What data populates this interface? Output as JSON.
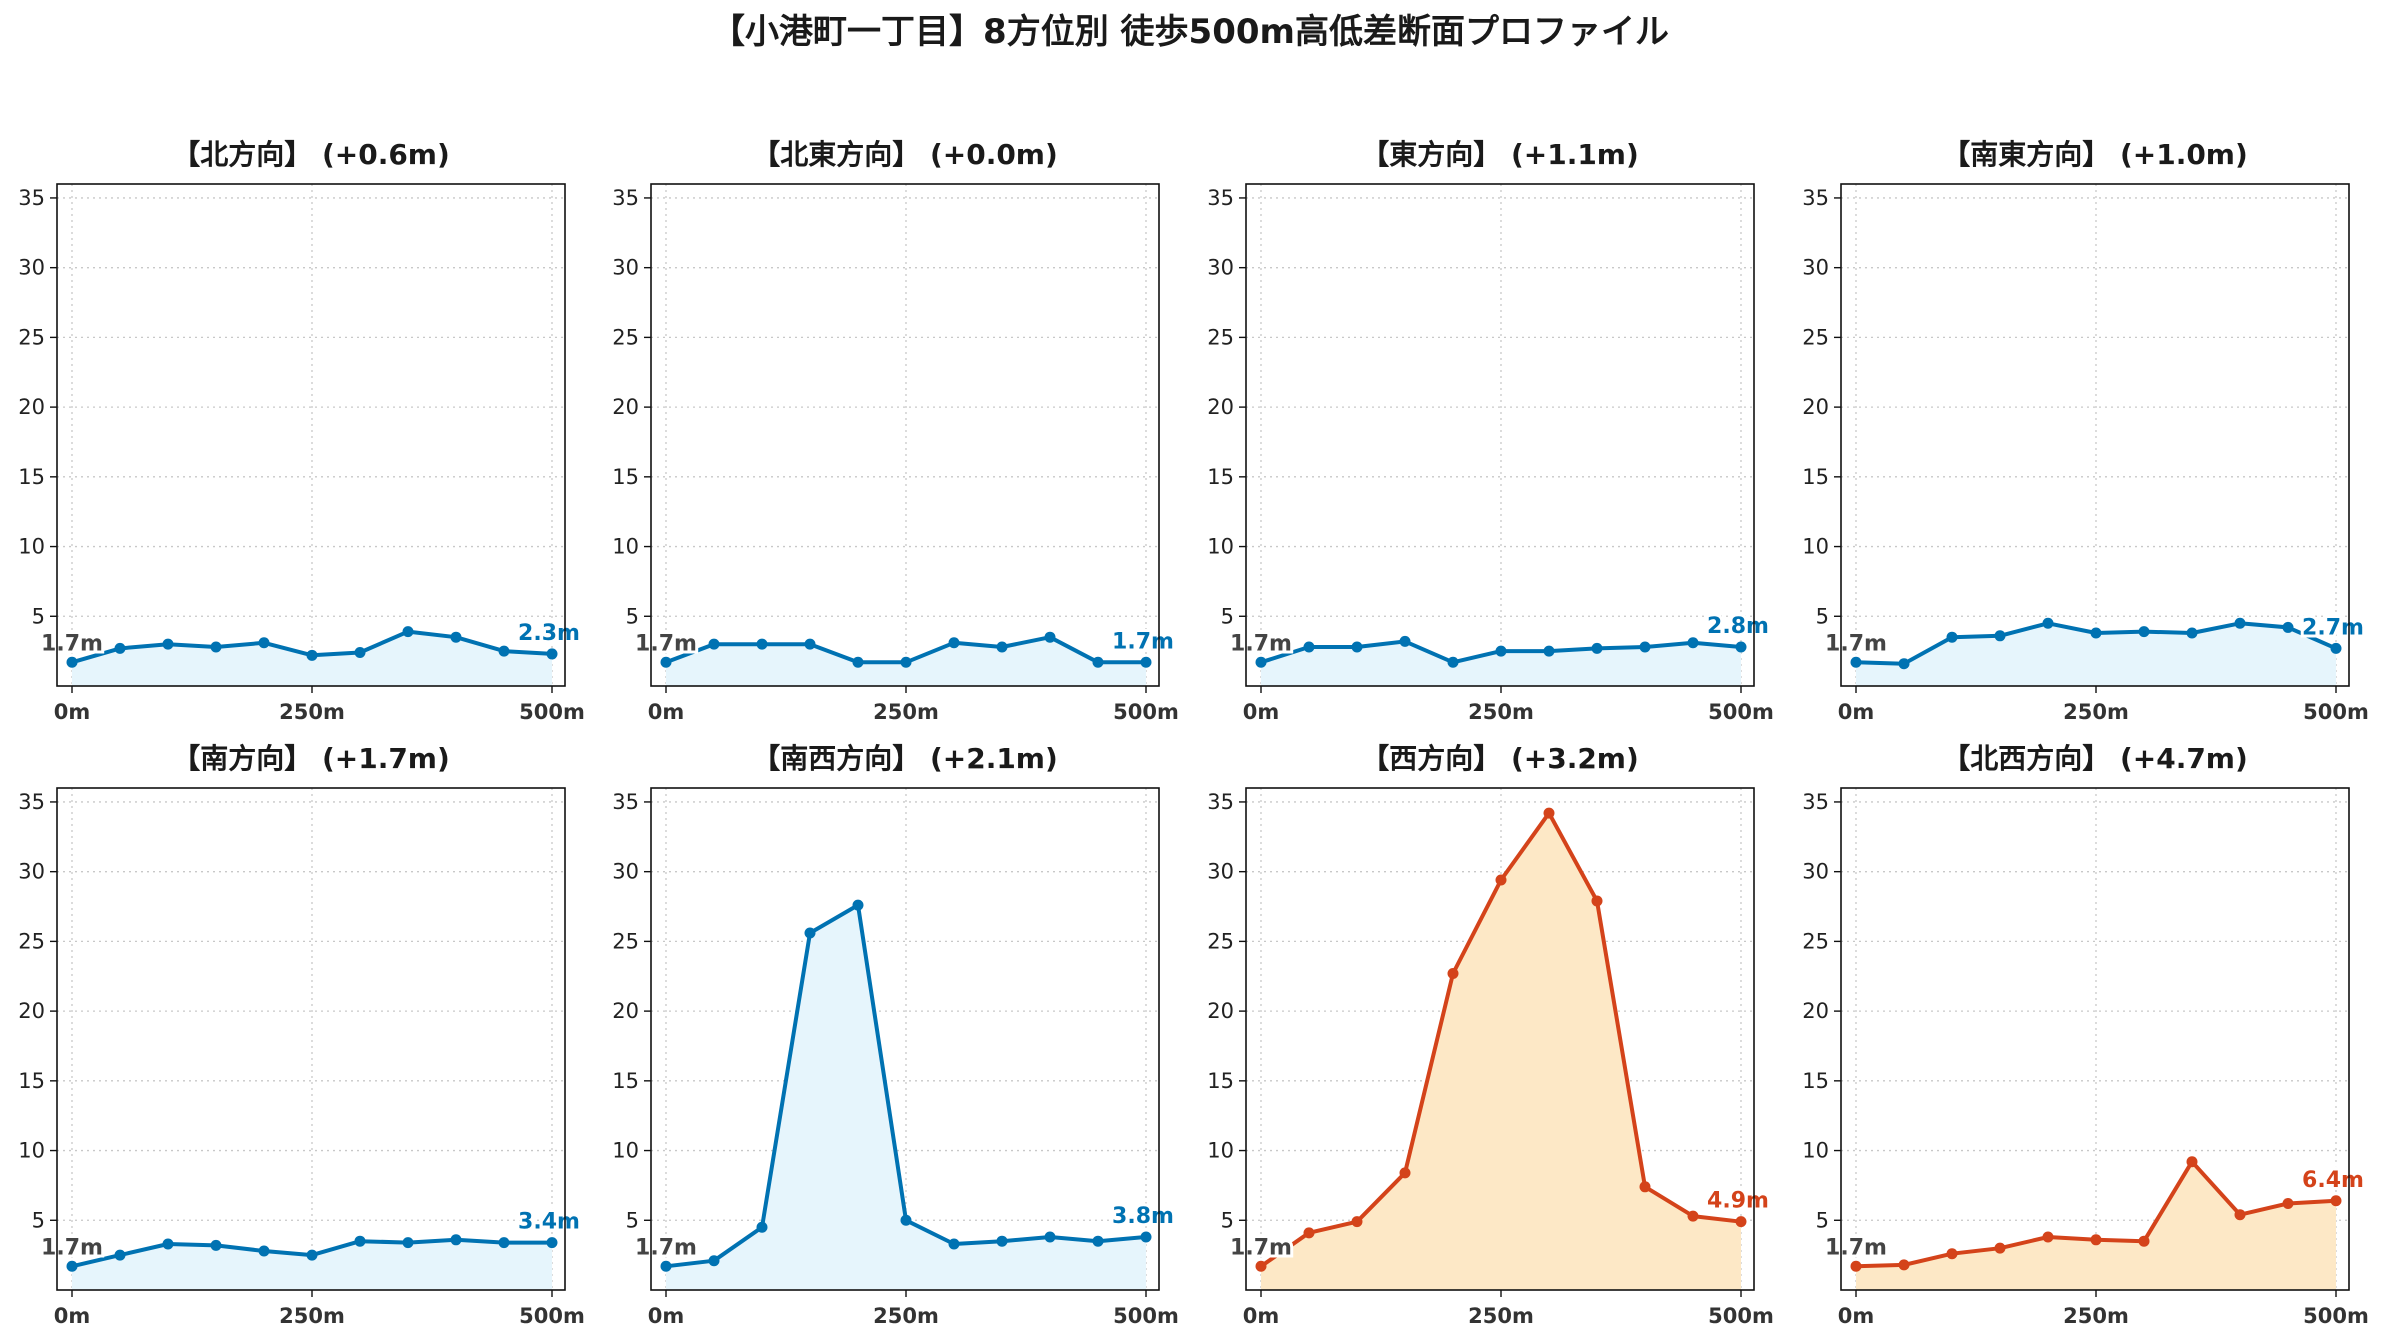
{
  "title": "【小港町一丁目】8方位別 徒歩500m高低差断面プロファイル",
  "colors": {
    "blue_line": "#0072b2",
    "blue_fill": "#e6f5fc",
    "red_line": "#d4431a",
    "orange_fill": "#fde8c6"
  },
  "chart_data": [
    {
      "type": "area",
      "title": "【北方向】 (+0.6m)",
      "x": [
        0,
        50,
        100,
        150,
        200,
        250,
        300,
        350,
        400,
        450,
        500
      ],
      "y": [
        1.7,
        2.7,
        3.0,
        2.8,
        3.1,
        2.2,
        2.4,
        3.9,
        3.5,
        2.5,
        2.3
      ],
      "start_label": "1.7m",
      "end_label": "2.3m",
      "color": "blue",
      "xticklabels": [
        "0m",
        "250m",
        "500m"
      ],
      "yticks": [
        5,
        10,
        15,
        20,
        25,
        30,
        35
      ],
      "ylim": [
        0,
        36
      ],
      "xlim": [
        0,
        500
      ],
      "grid": true
    },
    {
      "type": "area",
      "title": "【北東方向】 (+0.0m)",
      "x": [
        0,
        50,
        100,
        150,
        200,
        250,
        300,
        350,
        400,
        450,
        500
      ],
      "y": [
        1.7,
        3.0,
        3.0,
        3.0,
        1.7,
        1.7,
        3.1,
        2.8,
        3.5,
        1.7,
        1.7
      ],
      "start_label": "1.7m",
      "end_label": "1.7m",
      "color": "blue",
      "xticklabels": [
        "0m",
        "250m",
        "500m"
      ],
      "yticks": [
        5,
        10,
        15,
        20,
        25,
        30,
        35
      ],
      "ylim": [
        0,
        36
      ],
      "xlim": [
        0,
        500
      ],
      "grid": true
    },
    {
      "type": "area",
      "title": "【東方向】 (+1.1m)",
      "x": [
        0,
        50,
        100,
        150,
        200,
        250,
        300,
        350,
        400,
        450,
        500
      ],
      "y": [
        1.7,
        2.8,
        2.8,
        3.2,
        1.7,
        2.5,
        2.5,
        2.7,
        2.8,
        3.1,
        2.8
      ],
      "start_label": "1.7m",
      "end_label": "2.8m",
      "color": "blue",
      "xticklabels": [
        "0m",
        "250m",
        "500m"
      ],
      "yticks": [
        5,
        10,
        15,
        20,
        25,
        30,
        35
      ],
      "ylim": [
        0,
        36
      ],
      "xlim": [
        0,
        500
      ],
      "grid": true
    },
    {
      "type": "area",
      "title": "【南東方向】 (+1.0m)",
      "x": [
        0,
        50,
        100,
        150,
        200,
        250,
        300,
        350,
        400,
        450,
        500
      ],
      "y": [
        1.7,
        1.6,
        3.5,
        3.6,
        4.5,
        3.8,
        3.9,
        3.8,
        4.5,
        4.2,
        2.7
      ],
      "start_label": "1.7m",
      "end_label": "2.7m",
      "color": "blue",
      "xticklabels": [
        "0m",
        "250m",
        "500m"
      ],
      "yticks": [
        5,
        10,
        15,
        20,
        25,
        30,
        35
      ],
      "ylim": [
        0,
        36
      ],
      "xlim": [
        0,
        500
      ],
      "grid": true
    },
    {
      "type": "area",
      "title": "【南方向】 (+1.7m)",
      "x": [
        0,
        50,
        100,
        150,
        200,
        250,
        300,
        350,
        400,
        450,
        500
      ],
      "y": [
        1.7,
        2.5,
        3.3,
        3.2,
        2.8,
        2.5,
        3.5,
        3.4,
        3.6,
        3.4,
        3.4
      ],
      "start_label": "1.7m",
      "end_label": "3.4m",
      "color": "blue",
      "xticklabels": [
        "0m",
        "250m",
        "500m"
      ],
      "yticks": [
        5,
        10,
        15,
        20,
        25,
        30,
        35
      ],
      "ylim": [
        0,
        36
      ],
      "xlim": [
        0,
        500
      ],
      "grid": true
    },
    {
      "type": "area",
      "title": "【南西方向】 (+2.1m)",
      "x": [
        0,
        50,
        100,
        150,
        200,
        250,
        300,
        350,
        400,
        450,
        500
      ],
      "y": [
        1.7,
        2.1,
        4.5,
        25.6,
        27.6,
        5.0,
        3.3,
        3.5,
        3.8,
        3.5,
        3.8
      ],
      "start_label": "1.7m",
      "end_label": "3.8m",
      "color": "blue",
      "xticklabels": [
        "0m",
        "250m",
        "500m"
      ],
      "yticks": [
        5,
        10,
        15,
        20,
        25,
        30,
        35
      ],
      "ylim": [
        0,
        36
      ],
      "xlim": [
        0,
        500
      ],
      "grid": true
    },
    {
      "type": "area",
      "title": "【西方向】 (+3.2m)",
      "x": [
        0,
        50,
        100,
        150,
        200,
        250,
        300,
        350,
        400,
        450,
        500
      ],
      "y": [
        1.7,
        4.1,
        4.9,
        8.4,
        22.7,
        29.4,
        34.2,
        27.9,
        7.4,
        5.3,
        4.9
      ],
      "start_label": "1.7m",
      "end_label": "4.9m",
      "color": "red",
      "xticklabels": [
        "0m",
        "250m",
        "500m"
      ],
      "yticks": [
        5,
        10,
        15,
        20,
        25,
        30,
        35
      ],
      "ylim": [
        0,
        36
      ],
      "xlim": [
        0,
        500
      ],
      "grid": true
    },
    {
      "type": "area",
      "title": "【北西方向】 (+4.7m)",
      "x": [
        0,
        50,
        100,
        150,
        200,
        250,
        300,
        350,
        400,
        450,
        500
      ],
      "y": [
        1.7,
        1.8,
        2.6,
        3.0,
        3.8,
        3.6,
        3.5,
        9.2,
        5.4,
        6.2,
        6.4
      ],
      "start_label": "1.7m",
      "end_label": "6.4m",
      "color": "red",
      "xticklabels": [
        "0m",
        "250m",
        "500m"
      ],
      "yticks": [
        5,
        10,
        15,
        20,
        25,
        30,
        35
      ],
      "ylim": [
        0,
        36
      ],
      "xlim": [
        0,
        500
      ],
      "grid": true
    }
  ]
}
